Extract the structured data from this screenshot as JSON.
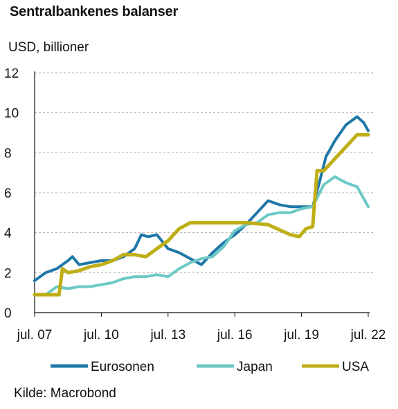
{
  "title": "Sentralbankenes balanser",
  "source": "Kilde: Macrobond",
  "colors": {
    "Eurosonen": "#1f77a8",
    "Japan": "#6cc9c5",
    "USA": "#bfae16",
    "grid": "#b0b0b0",
    "axis": "#111111"
  },
  "chart_data": {
    "type": "line",
    "title": "Sentralbankenes balanser",
    "ylabel": "USD, billioner",
    "xlabel": "",
    "ylim": [
      0,
      12
    ],
    "yticks": [
      0,
      2,
      4,
      6,
      8,
      10,
      12
    ],
    "xlim": [
      2007.5,
      2022.5
    ],
    "xticks": [
      {
        "value": 2007.5,
        "label": "jul. 07"
      },
      {
        "value": 2010.5,
        "label": "jul. 10"
      },
      {
        "value": 2013.5,
        "label": "jul. 13"
      },
      {
        "value": 2016.5,
        "label": "jul. 16"
      },
      {
        "value": 2019.5,
        "label": "jul. 19"
      },
      {
        "value": 2022.5,
        "label": "jul. 22"
      }
    ],
    "grid": "horizontal dashed",
    "legend": "bottom",
    "series": [
      {
        "name": "Eurosonen",
        "points": [
          [
            2007.5,
            1.6
          ],
          [
            2008.0,
            2.0
          ],
          [
            2008.5,
            2.2
          ],
          [
            2009.0,
            2.6
          ],
          [
            2009.2,
            2.8
          ],
          [
            2009.5,
            2.4
          ],
          [
            2010.0,
            2.5
          ],
          [
            2010.5,
            2.6
          ],
          [
            2011.0,
            2.6
          ],
          [
            2011.5,
            2.8
          ],
          [
            2012.0,
            3.2
          ],
          [
            2012.3,
            3.9
          ],
          [
            2012.6,
            3.8
          ],
          [
            2013.0,
            3.9
          ],
          [
            2013.5,
            3.2
          ],
          [
            2014.0,
            3.0
          ],
          [
            2014.5,
            2.7
          ],
          [
            2015.0,
            2.4
          ],
          [
            2015.5,
            3.0
          ],
          [
            2016.0,
            3.5
          ],
          [
            2016.5,
            3.9
          ],
          [
            2017.0,
            4.4
          ],
          [
            2017.5,
            5.0
          ],
          [
            2018.0,
            5.6
          ],
          [
            2018.5,
            5.4
          ],
          [
            2019.0,
            5.3
          ],
          [
            2019.5,
            5.3
          ],
          [
            2020.0,
            5.3
          ],
          [
            2020.3,
            6.5
          ],
          [
            2020.6,
            7.8
          ],
          [
            2021.0,
            8.6
          ],
          [
            2021.5,
            9.4
          ],
          [
            2022.0,
            9.8
          ],
          [
            2022.3,
            9.5
          ],
          [
            2022.5,
            9.1
          ]
        ]
      },
      {
        "name": "Japan",
        "points": [
          [
            2007.5,
            0.9
          ],
          [
            2008.0,
            0.9
          ],
          [
            2008.5,
            1.3
          ],
          [
            2009.0,
            1.2
          ],
          [
            2009.5,
            1.3
          ],
          [
            2010.0,
            1.3
          ],
          [
            2010.5,
            1.4
          ],
          [
            2011.0,
            1.5
          ],
          [
            2011.5,
            1.7
          ],
          [
            2012.0,
            1.8
          ],
          [
            2012.5,
            1.8
          ],
          [
            2013.0,
            1.9
          ],
          [
            2013.5,
            1.8
          ],
          [
            2014.0,
            2.2
          ],
          [
            2014.5,
            2.5
          ],
          [
            2015.0,
            2.7
          ],
          [
            2015.5,
            2.8
          ],
          [
            2016.0,
            3.3
          ],
          [
            2016.5,
            4.1
          ],
          [
            2017.0,
            4.4
          ],
          [
            2017.5,
            4.5
          ],
          [
            2018.0,
            4.9
          ],
          [
            2018.5,
            5.0
          ],
          [
            2019.0,
            5.0
          ],
          [
            2019.5,
            5.2
          ],
          [
            2020.0,
            5.3
          ],
          [
            2020.5,
            6.4
          ],
          [
            2021.0,
            6.8
          ],
          [
            2021.5,
            6.5
          ],
          [
            2022.0,
            6.3
          ],
          [
            2022.3,
            5.7
          ],
          [
            2022.5,
            5.3
          ]
        ]
      },
      {
        "name": "USA",
        "points": [
          [
            2007.5,
            0.9
          ],
          [
            2008.0,
            0.9
          ],
          [
            2008.6,
            0.9
          ],
          [
            2008.75,
            2.2
          ],
          [
            2009.0,
            2.0
          ],
          [
            2009.5,
            2.1
          ],
          [
            2010.0,
            2.3
          ],
          [
            2010.5,
            2.4
          ],
          [
            2011.0,
            2.6
          ],
          [
            2011.5,
            2.9
          ],
          [
            2012.0,
            2.9
          ],
          [
            2012.5,
            2.8
          ],
          [
            2013.0,
            3.2
          ],
          [
            2013.5,
            3.6
          ],
          [
            2014.0,
            4.2
          ],
          [
            2014.5,
            4.5
          ],
          [
            2015.0,
            4.5
          ],
          [
            2016.0,
            4.5
          ],
          [
            2017.0,
            4.5
          ],
          [
            2018.0,
            4.4
          ],
          [
            2019.0,
            3.9
          ],
          [
            2019.4,
            3.8
          ],
          [
            2019.7,
            4.2
          ],
          [
            2020.0,
            4.3
          ],
          [
            2020.2,
            7.1
          ],
          [
            2020.5,
            7.1
          ],
          [
            2021.0,
            7.7
          ],
          [
            2021.5,
            8.3
          ],
          [
            2022.0,
            8.9
          ],
          [
            2022.5,
            8.9
          ]
        ]
      }
    ]
  }
}
